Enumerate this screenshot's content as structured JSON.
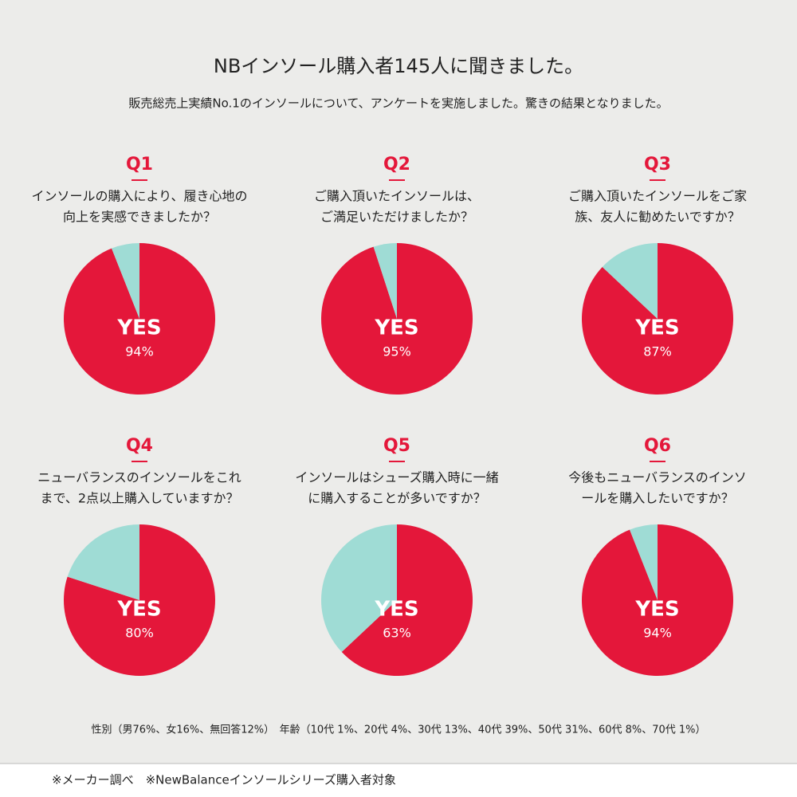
{
  "header": {
    "title": "NBインソール購入者145人に聞きました。",
    "subtitle": "販売総売上実績No.1のインソールについて、アンケートを実施しました。驚きの結果となりました。"
  },
  "chart_data": [
    {
      "type": "pie",
      "title": "Q1",
      "question": [
        "インソールの購入により、履き心地の",
        "向上を実感できましたか？"
      ],
      "categories": [
        "YES",
        null
      ],
      "values": [
        94,
        6
      ],
      "value_labels": [
        "94%",
        null
      ],
      "colors": [
        "#e4173a",
        "#9fdcd5"
      ]
    },
    {
      "type": "pie",
      "title": "Q2",
      "question": [
        "ご購入頂いたインソールは、",
        "ご満足いただけましたか？"
      ],
      "categories": [
        "YES",
        null
      ],
      "values": [
        95,
        5
      ],
      "value_labels": [
        "95%",
        null
      ],
      "colors": [
        "#e4173a",
        "#9fdcd5"
      ]
    },
    {
      "type": "pie",
      "title": "Q3",
      "question": [
        "ご購入頂いたインソールをご家",
        "族、友人に勧めたいですか？"
      ],
      "categories": [
        "YES",
        null
      ],
      "values": [
        87,
        13
      ],
      "value_labels": [
        "87%",
        null
      ],
      "colors": [
        "#e4173a",
        "#9fdcd5"
      ]
    },
    {
      "type": "pie",
      "title": "Q4",
      "question": [
        "ニューバランスのインソールをこれ",
        "まで、2点以上購入していますか？"
      ],
      "categories": [
        "YES",
        null
      ],
      "values": [
        80,
        20
      ],
      "value_labels": [
        "80%",
        null
      ],
      "colors": [
        "#e4173a",
        "#9fdcd5"
      ]
    },
    {
      "type": "pie",
      "title": "Q5",
      "question": [
        "インソールはシューズ購入時に一緒",
        "に購入することが多いですか？"
      ],
      "categories": [
        "YES",
        null
      ],
      "values": [
        63,
        37
      ],
      "value_labels": [
        "63%",
        null
      ],
      "colors": [
        "#e4173a",
        "#9fdcd5"
      ]
    },
    {
      "type": "pie",
      "title": "Q6",
      "question": [
        "今後もニューバランスのインソ",
        "ールを購入したいですか？"
      ],
      "categories": [
        "YES",
        null
      ],
      "values": [
        94,
        6
      ],
      "value_labels": [
        "94%",
        null
      ],
      "colors": [
        "#e4173a",
        "#9fdcd5"
      ]
    }
  ],
  "footer": {
    "demographics": "性別（男76%、女16%、無回答12%）　年齢（10代 1%、20代 4%、30代 13%、40代 39%、50代 31%、60代 8%、70代 1%）",
    "note": "※メーカー調べ　※NewBalanceインソールシリーズ購入者対象"
  }
}
